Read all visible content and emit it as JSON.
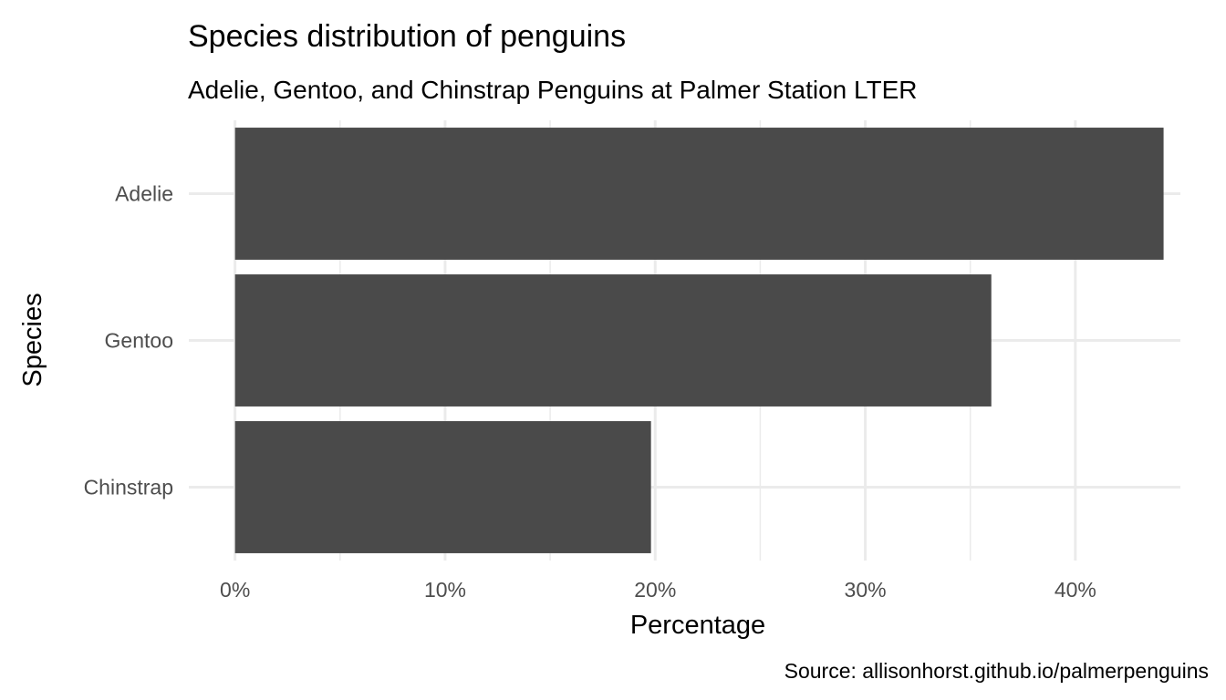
{
  "chart_data": {
    "type": "bar",
    "orientation": "horizontal",
    "title": "Species distribution of penguins",
    "subtitle": "Adelie, Gentoo, and Chinstrap Penguins at Palmer Station LTER",
    "caption": "Source: allisonhorst.github.io/palmerpenguins",
    "xlabel": "Percentage",
    "ylabel": "Species",
    "categories": [
      "Adelie",
      "Gentoo",
      "Chinstrap"
    ],
    "values": [
      44.2,
      36.0,
      19.8
    ],
    "xlim": [
      -2.2,
      45.0
    ],
    "xticks": [
      0,
      10,
      20,
      30,
      40
    ],
    "xtick_labels": [
      "0%",
      "10%",
      "20%",
      "30%",
      "40%"
    ],
    "grid": true,
    "bar_color": "#4a4a4a",
    "grid_color": "#ebebeb"
  }
}
